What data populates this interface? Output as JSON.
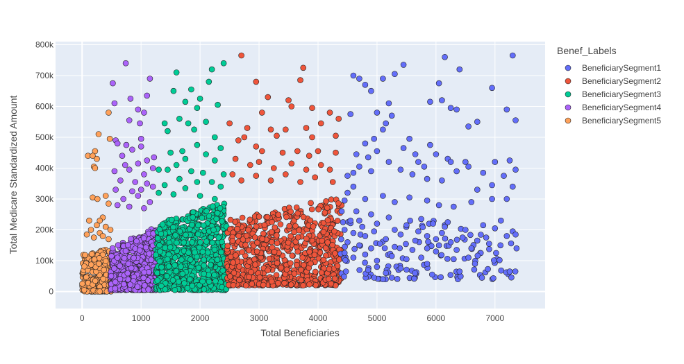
{
  "chart_data": {
    "type": "scatter",
    "xlabel": "Total Beneficiaries",
    "ylabel": "Total Medicare Standardized Amount",
    "xlim": [
      -450,
      7850
    ],
    "ylim": [
      -55000,
      810000
    ],
    "x_ticks": [
      0,
      1000,
      2000,
      3000,
      4000,
      5000,
      6000,
      7000
    ],
    "x_tick_labels": [
      "0",
      "1000",
      "2000",
      "3000",
      "4000",
      "5000",
      "6000",
      "7000"
    ],
    "y_ticks": [
      0,
      100000,
      200000,
      300000,
      400000,
      500000,
      600000,
      700000,
      800000
    ],
    "y_tick_labels": [
      "0",
      "100k",
      "200k",
      "300k",
      "400k",
      "500k",
      "600k",
      "700k",
      "800k"
    ],
    "grid": true,
    "legend": {
      "title": "Benef_Labels",
      "placement": "right"
    },
    "series": [
      {
        "name": "BeneficiarySegment1",
        "color": "#636efa",
        "x_range": [
          4350,
          7400
        ],
        "points": [
          [
            4600,
            700000
          ],
          [
            4700,
            690000
          ],
          [
            4900,
            650000
          ],
          [
            4800,
            670000
          ],
          [
            5100,
            690000
          ],
          [
            5300,
            705000
          ],
          [
            5450,
            735000
          ],
          [
            6150,
            760000
          ],
          [
            7300,
            765000
          ],
          [
            6400,
            720000
          ],
          [
            6950,
            660000
          ],
          [
            6050,
            675000
          ],
          [
            5900,
            615000
          ],
          [
            6100,
            620000
          ],
          [
            7200,
            590000
          ],
          [
            5200,
            610000
          ],
          [
            5250,
            570000
          ],
          [
            5000,
            580000
          ],
          [
            4550,
            575000
          ],
          [
            6250,
            595000
          ],
          [
            6350,
            590000
          ],
          [
            6550,
            535000
          ],
          [
            6700,
            550000
          ],
          [
            7350,
            555000
          ],
          [
            5100,
            525000
          ],
          [
            5150,
            545000
          ],
          [
            4950,
            495000
          ],
          [
            5550,
            495000
          ],
          [
            5900,
            475000
          ],
          [
            5450,
            465000
          ],
          [
            4650,
            445000
          ],
          [
            4800,
            480000
          ],
          [
            5000,
            455000
          ],
          [
            4850,
            435000
          ],
          [
            5200,
            420000
          ],
          [
            5650,
            445000
          ],
          [
            5700,
            420000
          ],
          [
            6000,
            445000
          ],
          [
            6200,
            430000
          ],
          [
            6250,
            420000
          ],
          [
            5800,
            405000
          ],
          [
            6500,
            420000
          ],
          [
            6550,
            405000
          ],
          [
            7000,
            420000
          ],
          [
            7250,
            425000
          ],
          [
            7350,
            395000
          ],
          [
            6800,
            385000
          ],
          [
            7150,
            375000
          ],
          [
            4600,
            385000
          ],
          [
            4500,
            375000
          ],
          [
            4700,
            405000
          ],
          [
            4900,
            390000
          ],
          [
            5400,
            395000
          ],
          [
            5600,
            380000
          ],
          [
            5850,
            365000
          ],
          [
            6100,
            360000
          ],
          [
            6350,
            390000
          ],
          [
            6950,
            345000
          ],
          [
            7300,
            340000
          ],
          [
            6700,
            330000
          ],
          [
            4600,
            340000
          ],
          [
            4500,
            320000
          ],
          [
            4800,
            300000
          ],
          [
            5100,
            310000
          ],
          [
            5300,
            290000
          ],
          [
            5550,
            305000
          ],
          [
            5850,
            295000
          ],
          [
            6050,
            280000
          ],
          [
            6300,
            275000
          ],
          [
            6600,
            290000
          ],
          [
            6950,
            300000
          ],
          [
            7200,
            300000
          ],
          [
            4450,
            295000
          ],
          [
            4650,
            260000
          ],
          [
            4700,
            230000
          ],
          [
            4900,
            250000
          ],
          [
            5000,
            220000
          ],
          [
            5200,
            240000
          ],
          [
            5500,
            215000
          ],
          [
            5750,
            235000
          ],
          [
            5950,
            220000
          ],
          [
            6150,
            210000
          ],
          [
            6500,
            200000
          ],
          [
            6800,
            215000
          ],
          [
            7000,
            205000
          ],
          [
            7300,
            195000
          ],
          [
            4450,
            200000
          ],
          [
            4600,
            190000
          ],
          [
            4800,
            180000
          ],
          [
            4950,
            195000
          ],
          [
            5150,
            170000
          ],
          [
            5400,
            185000
          ],
          [
            5650,
            165000
          ],
          [
            5850,
            180000
          ],
          [
            6000,
            170000
          ],
          [
            6250,
            160000
          ],
          [
            6450,
            175000
          ],
          [
            6700,
            165000
          ],
          [
            6900,
            155000
          ],
          [
            7200,
            180000
          ],
          [
            4500,
            160000
          ],
          [
            4700,
            150000
          ],
          [
            4900,
            140000
          ],
          [
            5050,
            155000
          ],
          [
            5300,
            145000
          ],
          [
            5600,
            135000
          ],
          [
            5850,
            140000
          ],
          [
            6050,
            150000
          ],
          [
            6350,
            135000
          ],
          [
            6600,
            140000
          ],
          [
            4450,
            125000
          ],
          [
            4600,
            110000
          ],
          [
            4800,
            120000
          ],
          [
            5000,
            100000
          ],
          [
            5250,
            115000
          ],
          [
            5500,
            105000
          ],
          [
            5750,
            110000
          ],
          [
            6000,
            130000
          ],
          [
            6300,
            105000
          ],
          [
            6550,
            110000
          ],
          [
            4850,
            70000
          ],
          [
            5000,
            80000
          ],
          [
            5150,
            60000
          ],
          [
            5400,
            75000
          ],
          [
            5850,
            90000
          ],
          [
            6400,
            65000
          ],
          [
            7250,
            65000
          ],
          [
            4950,
            45000
          ],
          [
            5250,
            45000
          ],
          [
            5100,
            40000
          ],
          [
            4400,
            260000
          ],
          [
            4550,
            230000
          ],
          [
            4750,
            210000
          ],
          [
            5300,
            200000
          ],
          [
            5700,
            195000
          ],
          [
            6100,
            190000
          ],
          [
            6850,
            175000
          ],
          [
            7100,
            230000
          ],
          [
            7350,
            185000
          ],
          [
            6200,
            225000
          ]
        ]
      },
      {
        "name": "BeneficiarySegment2",
        "color": "#ef553b",
        "x_range": [
          2450,
          4400
        ],
        "points": [
          [
            2700,
            765000
          ],
          [
            3750,
            725000
          ],
          [
            3700,
            685000
          ],
          [
            2950,
            680000
          ],
          [
            3150,
            630000
          ],
          [
            3500,
            620000
          ],
          [
            3550,
            600000
          ],
          [
            3900,
            595000
          ],
          [
            4200,
            580000
          ],
          [
            3050,
            580000
          ],
          [
            4350,
            560000
          ],
          [
            4050,
            545000
          ],
          [
            2800,
            530000
          ],
          [
            3200,
            525000
          ],
          [
            3450,
            525000
          ],
          [
            3800,
            530000
          ],
          [
            2500,
            545000
          ],
          [
            2650,
            490000
          ],
          [
            2750,
            500000
          ],
          [
            3300,
            505000
          ],
          [
            3900,
            500000
          ],
          [
            4300,
            505000
          ],
          [
            2950,
            470000
          ],
          [
            3050,
            455000
          ],
          [
            3400,
            450000
          ],
          [
            3650,
            455000
          ],
          [
            3850,
            440000
          ],
          [
            4000,
            455000
          ],
          [
            4300,
            450000
          ],
          [
            2600,
            430000
          ],
          [
            2850,
            410000
          ],
          [
            3000,
            420000
          ],
          [
            3250,
            400000
          ],
          [
            3550,
            415000
          ],
          [
            3800,
            395000
          ],
          [
            4050,
            410000
          ],
          [
            4200,
            395000
          ],
          [
            2550,
            380000
          ],
          [
            2700,
            360000
          ],
          [
            2950,
            375000
          ],
          [
            3200,
            360000
          ],
          [
            3450,
            380000
          ],
          [
            3700,
            355000
          ],
          [
            3950,
            370000
          ],
          [
            4250,
            355000
          ]
        ]
      },
      {
        "name": "BeneficiarySegment3",
        "color": "#00cc96",
        "x_range": [
          1250,
          2450
        ],
        "points": [
          [
            2400,
            740000
          ],
          [
            2200,
            720000
          ],
          [
            1600,
            710000
          ],
          [
            2150,
            680000
          ],
          [
            1850,
            655000
          ],
          [
            1550,
            650000
          ],
          [
            1750,
            615000
          ],
          [
            2000,
            625000
          ],
          [
            2300,
            605000
          ],
          [
            1950,
            595000
          ],
          [
            1650,
            560000
          ],
          [
            1800,
            545000
          ],
          [
            2100,
            550000
          ],
          [
            1400,
            545000
          ],
          [
            1450,
            520000
          ],
          [
            1900,
            525000
          ],
          [
            2250,
            500000
          ],
          [
            2350,
            465000
          ],
          [
            1950,
            475000
          ],
          [
            1700,
            455000
          ],
          [
            1500,
            450000
          ],
          [
            2100,
            445000
          ],
          [
            1750,
            430000
          ],
          [
            1600,
            410000
          ],
          [
            2250,
            425000
          ],
          [
            1300,
            395000
          ],
          [
            1450,
            395000
          ],
          [
            1850,
            390000
          ],
          [
            2050,
            385000
          ],
          [
            2400,
            380000
          ],
          [
            1650,
            365000
          ],
          [
            1950,
            355000
          ],
          [
            2200,
            355000
          ],
          [
            1400,
            345000
          ],
          [
            1750,
            335000
          ],
          [
            2350,
            340000
          ],
          [
            1300,
            320000
          ],
          [
            1550,
            315000
          ],
          [
            2000,
            310000
          ],
          [
            2250,
            300000
          ]
        ]
      },
      {
        "name": "BeneficiarySegment4",
        "color": "#ab63fa",
        "x_range": [
          480,
          1260
        ],
        "points": [
          [
            740,
            740000
          ],
          [
            520,
            675000
          ],
          [
            1150,
            690000
          ],
          [
            1100,
            635000
          ],
          [
            550,
            610000
          ],
          [
            820,
            625000
          ],
          [
            950,
            590000
          ],
          [
            1050,
            580000
          ],
          [
            800,
            555000
          ],
          [
            980,
            545000
          ],
          [
            1000,
            495000
          ],
          [
            570,
            490000
          ],
          [
            600,
            480000
          ],
          [
            750,
            475000
          ],
          [
            850,
            460000
          ],
          [
            1000,
            470000
          ],
          [
            680,
            440000
          ],
          [
            1220,
            435000
          ],
          [
            1100,
            425000
          ],
          [
            950,
            415000
          ],
          [
            730,
            410000
          ],
          [
            1200,
            400000
          ],
          [
            550,
            390000
          ],
          [
            800,
            395000
          ],
          [
            1050,
            380000
          ],
          [
            650,
            360000
          ],
          [
            900,
            355000
          ],
          [
            1100,
            350000
          ],
          [
            570,
            330000
          ],
          [
            1000,
            330000
          ],
          [
            850,
            325000
          ],
          [
            1200,
            340000
          ],
          [
            700,
            300000
          ],
          [
            950,
            310000
          ],
          [
            1150,
            290000
          ],
          [
            600,
            280000
          ],
          [
            800,
            275000
          ],
          [
            1050,
            270000
          ]
        ]
      },
      {
        "name": "BeneficiarySegment5",
        "color": "#ffa15a",
        "x_range": [
          0,
          500
        ],
        "points": [
          [
            280,
            510000
          ],
          [
            220,
            455000
          ],
          [
            100,
            440000
          ],
          [
            180,
            440000
          ],
          [
            250,
            430000
          ],
          [
            200,
            405000
          ],
          [
            220,
            400000
          ],
          [
            450,
            580000
          ],
          [
            470,
            495000
          ],
          [
            400,
            310000
          ],
          [
            180,
            305000
          ],
          [
            260,
            300000
          ],
          [
            450,
            285000
          ],
          [
            350,
            240000
          ],
          [
            300,
            230000
          ],
          [
            120,
            230000
          ],
          [
            250,
            215000
          ],
          [
            400,
            210000
          ],
          [
            150,
            200000
          ],
          [
            480,
            200000
          ],
          [
            300,
            190000
          ],
          [
            80,
            185000
          ],
          [
            350,
            180000
          ],
          [
            200,
            175000
          ],
          [
            450,
            170000
          ]
        ]
      }
    ]
  }
}
